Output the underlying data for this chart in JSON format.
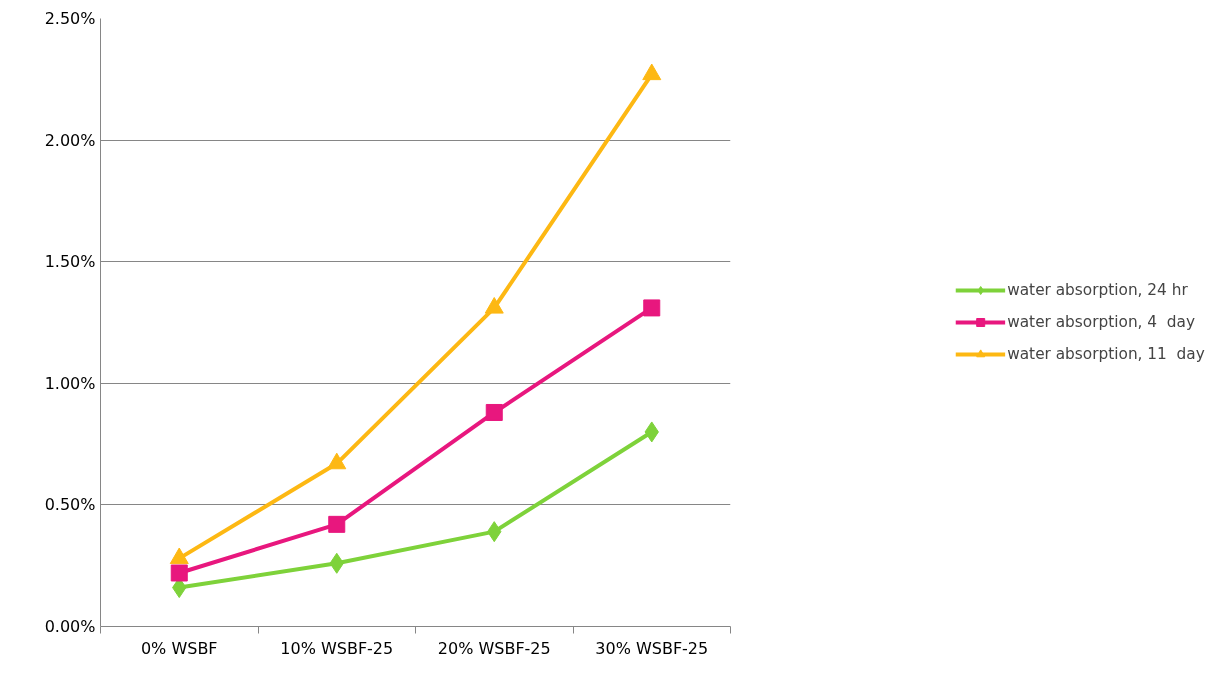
{
  "chart_data": {
    "type": "line",
    "categories": [
      "0% WSBF",
      "10% WSBF-25",
      "20% WSBF-25",
      "30% WSBF-25"
    ],
    "series": [
      {
        "name": "water absorption, 24 hr",
        "color": "#7ed23a",
        "marker": "diamond",
        "values": [
          0.16,
          0.26,
          0.39,
          0.8
        ]
      },
      {
        "name": "water absorption, 4  day",
        "color": "#e8177e",
        "marker": "square",
        "values": [
          0.22,
          0.42,
          0.88,
          1.31
        ]
      },
      {
        "name": "water absorption, 11  day",
        "color": "#fdb813",
        "marker": "triangle",
        "values": [
          0.28,
          0.67,
          1.31,
          2.27
        ]
      }
    ],
    "ylim": [
      0,
      2.5
    ],
    "yticks": [
      {
        "value": 0,
        "label": "0.00%"
      },
      {
        "value": 0.5,
        "label": "0.50%"
      },
      {
        "value": 1.0,
        "label": "1.00%"
      },
      {
        "value": 1.5,
        "label": "1.50%"
      },
      {
        "value": 2.0,
        "label": "2.00%"
      },
      {
        "value": 2.5,
        "label": "2.50%"
      }
    ],
    "grid": "y",
    "legend": "right",
    "line_style": "solid"
  }
}
